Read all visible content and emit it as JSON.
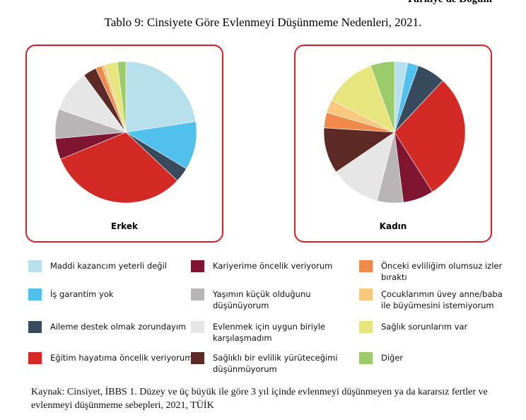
{
  "header_fragment": "Türkiye'de Doğum",
  "title": "Tablo 9: Cinsiyete Göre Evlenmeyi Düşünmeme Nedenleri, 2021.",
  "chart_data": [
    {
      "type": "pie",
      "label": "Erkek",
      "categories": [
        "Maddi kazancım yeterli değil",
        "İş garantim yok",
        "Aileme destek olmak zorundayım",
        "Eğitim hayatıma öncelik veriyorum",
        "Kariyerime öncelik veriyorum",
        "Yaşımın küçük olduğunu düşünüyorum",
        "Evlenmek için uygun biriyle karşılaşmadım",
        "Sağlıklı bir evlilik yürüteceğimi düşünmüyorum",
        "Önceki evliliğim olumsuz izler bıraktı",
        "Çocuklarımın üvey anne/baba ile büyümesini istemiyorum",
        "Sağlık sorunlarım var",
        "Diğer"
      ],
      "values": [
        23.5,
        11.5,
        3.5,
        33,
        5,
        7,
        10,
        3.2,
        1.5,
        0.8,
        3,
        2
      ]
    },
    {
      "type": "pie",
      "label": "Kadın",
      "categories": [
        "Maddi kazancım yeterli değil",
        "İş garantim yok",
        "Aileme destek olmak zorundayım",
        "Eğitim hayatıma öncelik veriyorum",
        "Kariyerime öncelik veriyorum",
        "Yaşımın küçük olduğunu düşünüyorum",
        "Evlenmek için uygun biriyle karşılaşmadım",
        "Sağlıklı bir evlilik yürüteceğimi düşünmüyorum",
        "Önceki evliliğim olumsuz izler bıraktı",
        "Çocuklarımın üvey anne/baba ile büyümesini istemiyorum",
        "Sağlık sorunlarım var",
        "Diğer"
      ],
      "values": [
        3,
        2.5,
        6.5,
        29,
        7,
        6,
        11.5,
        10.5,
        3.5,
        3,
        12,
        5.5
      ]
    }
  ],
  "legend": [
    {
      "label": "Maddi kazancım yeterli değil",
      "color": "#b8e0ec"
    },
    {
      "label": "Kariyerime öncelik veriyorum",
      "color": "#7f1530"
    },
    {
      "label": "Önceki evliliğim olumsuz izler\nbıraktı",
      "color": "#ef8a4a"
    },
    {
      "label": "İş garantim yok",
      "color": "#52c0ed"
    },
    {
      "label": "Yaşımın küçük olduğunu\ndüşünüyorum",
      "color": "#b9b4b6"
    },
    {
      "label": "Çocuklarımın üvey anne/baba\nile büyümesini istemiyorum",
      "color": "#f9c77d"
    },
    {
      "label": "Aileme destek olmak zorundayım",
      "color": "#374a5e"
    },
    {
      "label": "Evlenmek için uygun biriyle\nkarşılaşmadım",
      "color": "#e6e6e6"
    },
    {
      "label": "Sağlık sorunlarım var",
      "color": "#e7e57d"
    },
    {
      "label": "Eğitim hayatıma öncelik veriyorum",
      "color": "#d42a26"
    },
    {
      "label": "Sağlıklı bir evlilik yürüteceğimi\ndüşünmüyorum",
      "color": "#5d2a26"
    },
    {
      "label": "Diğer",
      "color": "#9ccb6b"
    }
  ],
  "source": "Kaynak: Cinsiyet, İBBS 1. Düzey ve üç büyük ile göre 3 yıl içinde evlenmeyi düşünmeyen ya da kararsız fertler ve evlenmeyi düşünmeme sebepleri, 2021, TÜİK"
}
